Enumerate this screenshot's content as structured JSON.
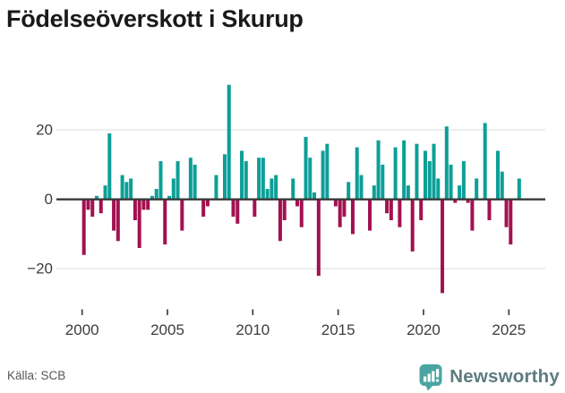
{
  "title": "Födelseöverskott i Skurup",
  "source": "Källa: SCB",
  "branding": {
    "name": "Newsworthy",
    "icon": "newsworthy-speech-bubble-chart-icon"
  },
  "colors": {
    "positive_bar": "#0c9f97",
    "negative_bar": "#a21150",
    "axis_line": "#3a3a3a",
    "gridline": "#e8e8e8",
    "tick_mark": "#3f3f3f",
    "tick_label": "#3d3d3d",
    "title_text": "#1a1a1a",
    "source_text": "#575757",
    "brand_text": "#5d7c80",
    "brand_icon": "#4aa5a2",
    "background": "#ffffff"
  },
  "chart_data": {
    "type": "bar",
    "title": "Födelseöverskott i Skurup",
    "xlabel": "",
    "ylabel": "",
    "frequency": "quarterly",
    "start": "2000Q1",
    "end": "2025Q3",
    "grid": "horizontal",
    "legend": "none",
    "ylim": [
      -29,
      35
    ],
    "y_ticks": [
      20,
      0,
      -20
    ],
    "y_tick_labels": [
      "20",
      "0",
      "−20"
    ],
    "x_tick_years": [
      2000,
      2005,
      2010,
      2015,
      2020,
      2025
    ],
    "x_tick_labels": [
      "2000",
      "2005",
      "2010",
      "2015",
      "2020",
      "2025"
    ],
    "values_by_year": {
      "2000": [
        -16,
        -3,
        -5,
        1
      ],
      "2001": [
        -4,
        4,
        19,
        -9
      ],
      "2002": [
        -12,
        7,
        5,
        6
      ],
      "2003": [
        -6,
        -14,
        -3,
        -3
      ],
      "2004": [
        1,
        3,
        11,
        -13
      ],
      "2005": [
        1,
        6,
        11,
        -9
      ],
      "2006": [
        0,
        12,
        10,
        0
      ],
      "2007": [
        -5,
        -2,
        0,
        7
      ],
      "2008": [
        0,
        13,
        33,
        -5
      ],
      "2009": [
        -7,
        14,
        11,
        0
      ],
      "2010": [
        -5,
        12,
        12,
        3
      ],
      "2011": [
        6,
        7,
        -12,
        -6
      ],
      "2012": [
        0,
        6,
        -2,
        -8
      ],
      "2013": [
        18,
        12,
        2,
        -22
      ],
      "2014": [
        14,
        16,
        0,
        -2
      ],
      "2015": [
        -8,
        -5,
        5,
        -10
      ],
      "2016": [
        15,
        7,
        0,
        -9
      ],
      "2017": [
        4,
        17,
        10,
        -4
      ],
      "2018": [
        -6,
        15,
        -8,
        17
      ],
      "2019": [
        4,
        -15,
        16,
        -6
      ],
      "2020": [
        14,
        11,
        16,
        6
      ],
      "2021": [
        -27,
        21,
        10,
        -1
      ],
      "2022": [
        4,
        11,
        -1,
        -9
      ],
      "2023": [
        6,
        0,
        22,
        -6
      ],
      "2024": [
        0,
        14,
        8,
        -8
      ],
      "2025": [
        -13,
        0,
        6
      ]
    }
  }
}
